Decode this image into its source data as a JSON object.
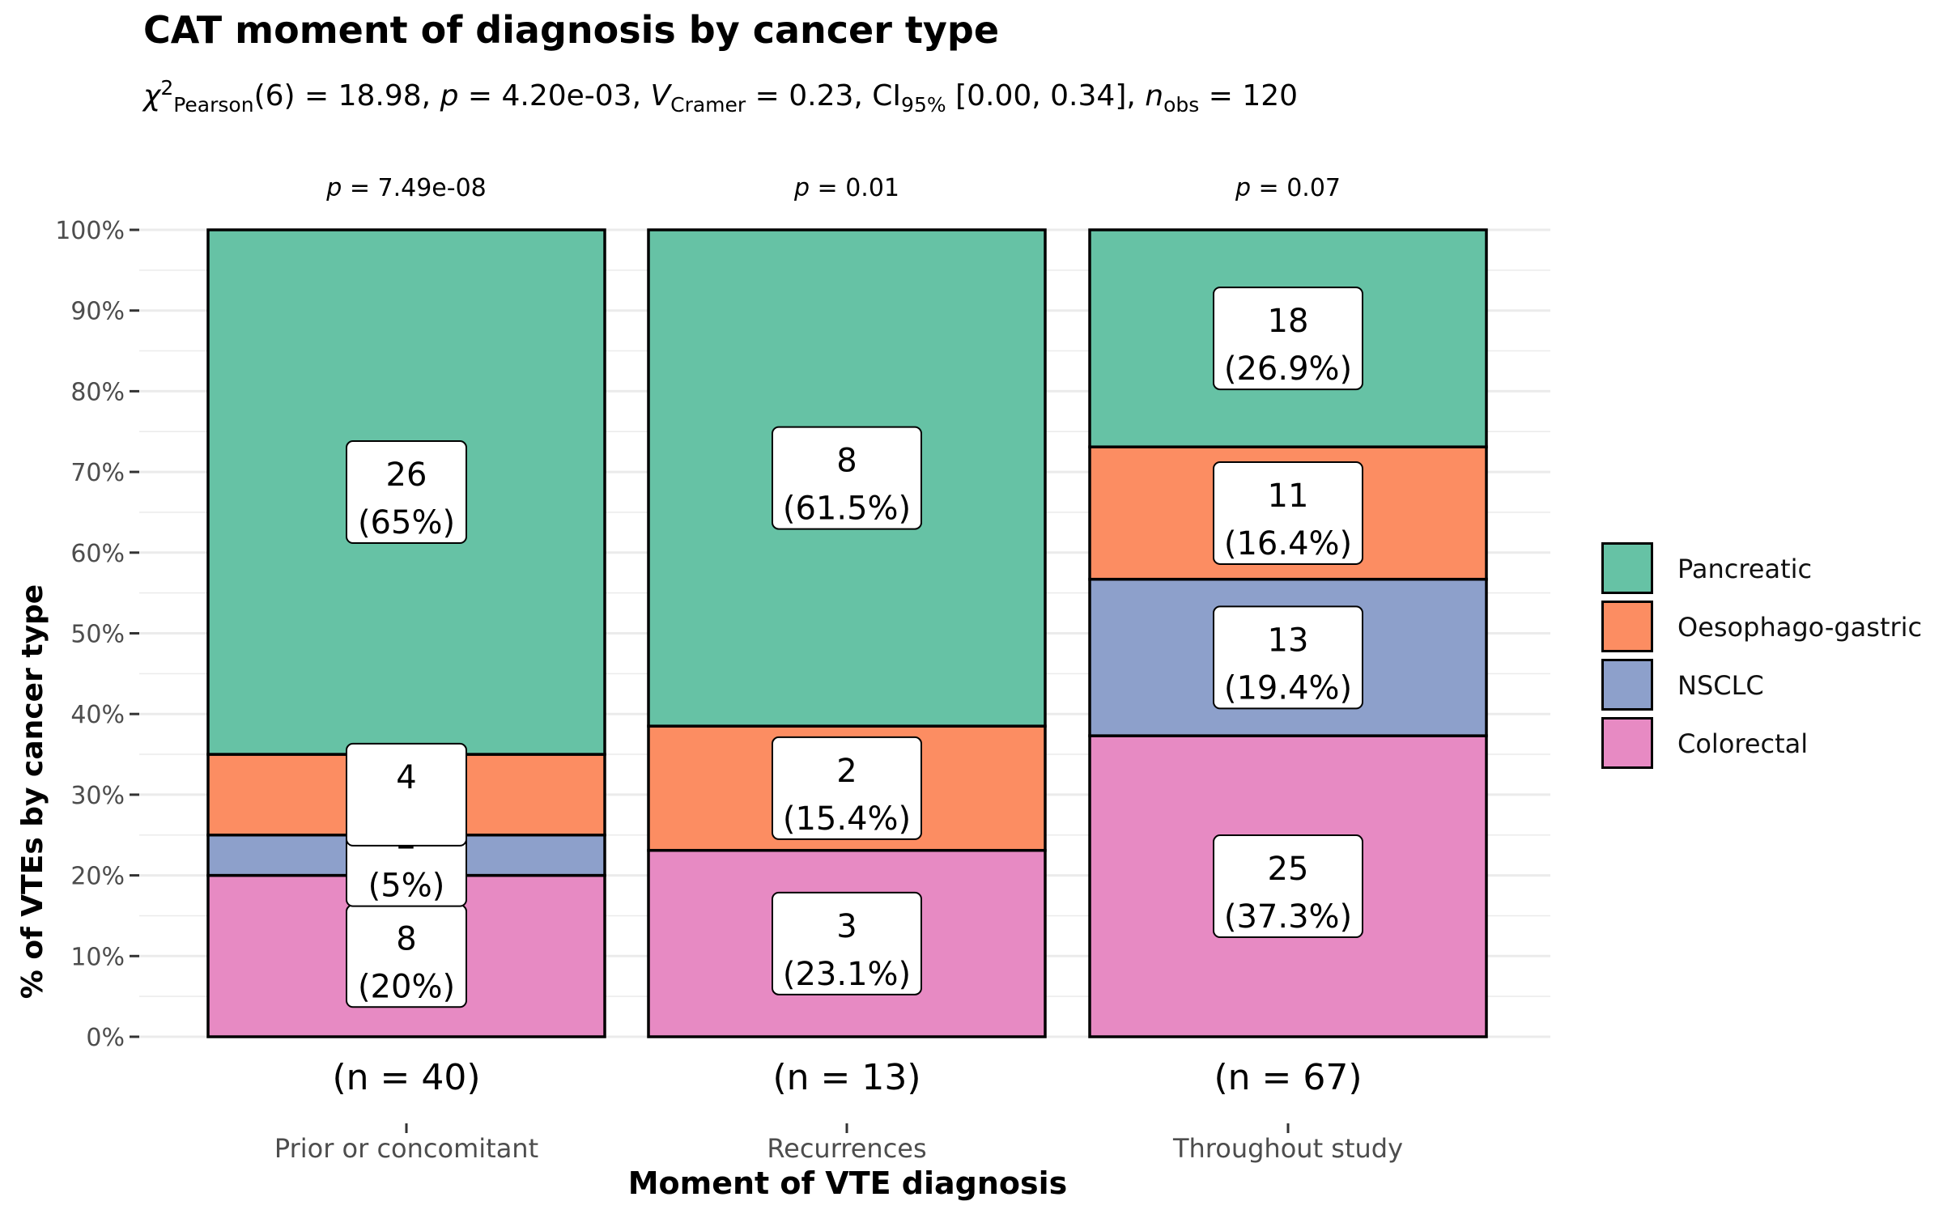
{
  "chart_data": {
    "type": "bar",
    "stacked": "percent",
    "title": "CAT moment of diagnosis by cancer type",
    "subtitle": {
      "chi_sym": "χ",
      "chi_sup": "2",
      "chi_sub": "Pearson",
      "chi_val": "(6) = 18.98, ",
      "p_sym": "p",
      "p_val": " = 4.20e-03, ",
      "v_sym": "V",
      "v_sub": "Cramer",
      "v_val": " = 0.23, ",
      "ci_sym": "CI",
      "ci_sub": "95%",
      "ci_val": " [0.00, 0.34], ",
      "n_sym": "n",
      "n_sub": "obs",
      "n_val": " = 120"
    },
    "xlabel": "Moment of VTE diagnosis",
    "ylabel": "% of VTEs by cancer type",
    "ylim": [
      0,
      100
    ],
    "yticks": [
      "0%",
      "10%",
      "20%",
      "30%",
      "40%",
      "50%",
      "60%",
      "70%",
      "80%",
      "90%",
      "100%"
    ],
    "categories": [
      "Prior or concomitant",
      "Recurrences",
      "Throughout study"
    ],
    "counts_labels": [
      "(n = 40)",
      "(n = 13)",
      "(n = 67)"
    ],
    "p_labels": [
      {
        "sym": "p",
        "val": " = 7.49e-08"
      },
      {
        "sym": "p",
        "val": " = 0.01"
      },
      {
        "sym": "p",
        "val": " = 0.07"
      }
    ],
    "series": [
      {
        "name": "Colorectal",
        "color": "#e78ac3",
        "counts": [
          8,
          3,
          25
        ],
        "percent": [
          20,
          23.1,
          37.3
        ],
        "labels": [
          "(20%)",
          "(23.1%)",
          "(37.3%)"
        ]
      },
      {
        "name": "NSCLC",
        "color": "#8da0cb",
        "counts": [
          2,
          0,
          13
        ],
        "percent": [
          5,
          0,
          19.4
        ],
        "labels": [
          "(5%)",
          "",
          "(19.4%)"
        ]
      },
      {
        "name": "Oesophago-gastric",
        "color": "#fc8d62",
        "counts": [
          4,
          2,
          11
        ],
        "percent": [
          10,
          15.4,
          16.4
        ],
        "labels": [
          "",
          "(15.4%)",
          "(16.4%)"
        ]
      },
      {
        "name": "Pancreatic",
        "color": "#66c2a5",
        "counts": [
          26,
          8,
          18
        ],
        "percent": [
          65,
          61.5,
          26.9
        ],
        "labels": [
          "(65%)",
          "(61.5%)",
          "(26.9%)"
        ]
      }
    ],
    "legend": {
      "position": "right",
      "items": [
        {
          "name": "Pancreatic",
          "color": "#66c2a5"
        },
        {
          "name": "Oesophago-gastric",
          "color": "#fc8d62"
        },
        {
          "name": "NSCLC",
          "color": "#8da0cb"
        },
        {
          "name": "Colorectal",
          "color": "#e78ac3"
        }
      ]
    },
    "grid": true
  }
}
